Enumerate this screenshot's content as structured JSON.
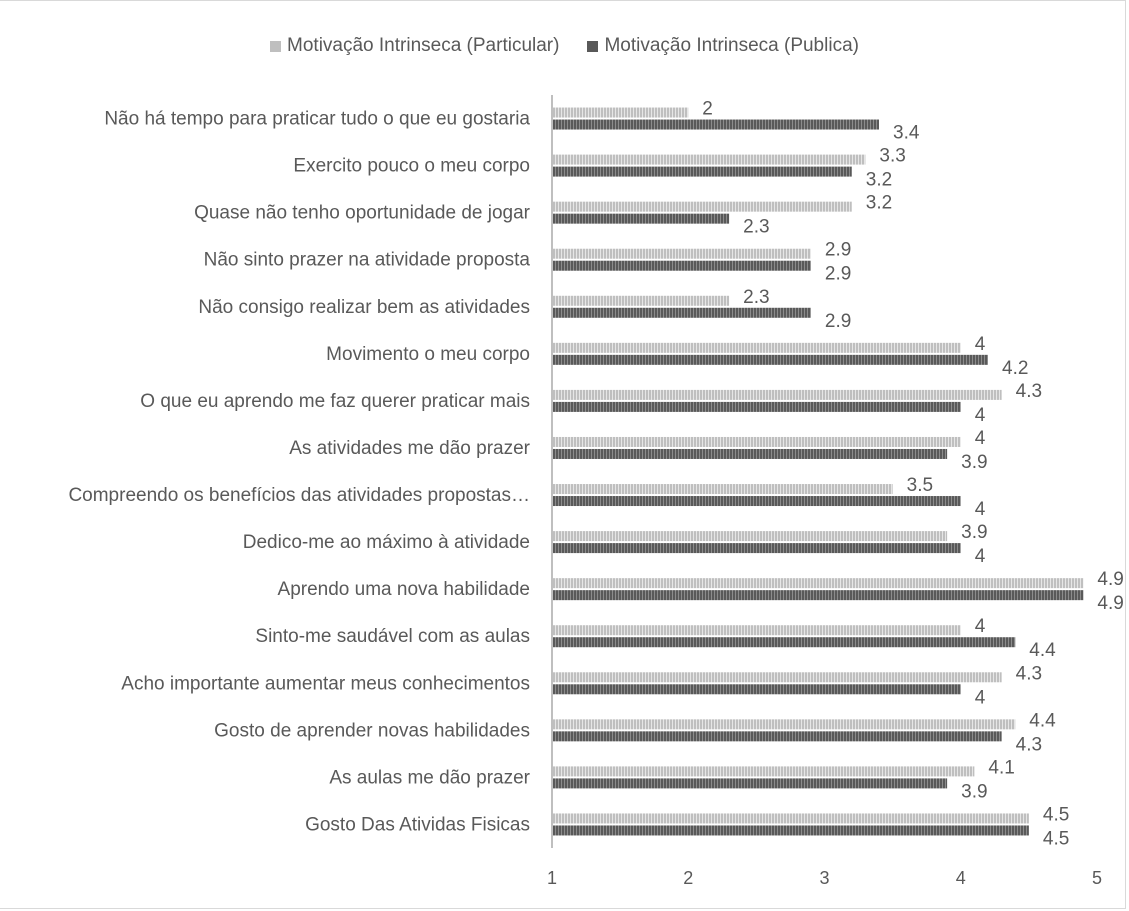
{
  "chart_data": {
    "type": "bar",
    "orientation": "horizontal",
    "categories": [
      "Não há tempo para praticar tudo o que eu gostaria",
      "Exercito pouco o meu corpo",
      "Quase não tenho oportunidade de jogar",
      "Não sinto prazer na atividade proposta",
      "Não consigo realizar bem as atividades",
      "Movimento o meu corpo",
      "O que eu aprendo me faz querer praticar mais",
      "As atividades me dão prazer",
      "Compreendo os benefícios das atividades propostas…",
      "Dedico-me ao máximo à atividade",
      "Aprendo uma nova habilidade",
      "Sinto-me saudável com as aulas",
      "Acho importante aumentar meus conhecimentos",
      "Gosto de aprender novas habilidades",
      "As aulas me dão prazer",
      "Gosto Das Atividas Fisicas"
    ],
    "series": [
      {
        "name": "Motivação Intrinseca (Particular)",
        "color": "#bfbfbf",
        "values": [
          2,
          3.3,
          3.2,
          2.9,
          2.3,
          4,
          4.3,
          4,
          3.5,
          3.9,
          4.9,
          4,
          4.3,
          4.4,
          4.1,
          4.5
        ],
        "labels": [
          "2",
          "3.3",
          "3.2",
          "2.9",
          "2.3",
          "4",
          "4.3",
          "4",
          "3.5",
          "3.9",
          "4.9",
          "4",
          "4.3",
          "4.4",
          "4.1",
          "4.5"
        ]
      },
      {
        "name": "Motivação Intrinseca (Publica)",
        "color": "#595959",
        "values": [
          3.4,
          3.2,
          2.3,
          2.9,
          2.9,
          4.2,
          4,
          3.9,
          4,
          4,
          4.9,
          4.4,
          4,
          4.3,
          3.9,
          4.5
        ],
        "labels": [
          "3.4",
          "3.2",
          "2.3",
          "2.9",
          "2.9",
          "4.2",
          "4",
          "3.9",
          "4",
          "4",
          "4.9",
          "4.4",
          "4",
          "4.3",
          "3.9",
          "4.5"
        ]
      }
    ],
    "xlim": [
      1,
      5
    ],
    "x_ticks": [
      "1",
      "2",
      "3",
      "4",
      "5"
    ],
    "grid": false,
    "legend_position": "top",
    "title": "",
    "xlabel": "",
    "ylabel": ""
  }
}
